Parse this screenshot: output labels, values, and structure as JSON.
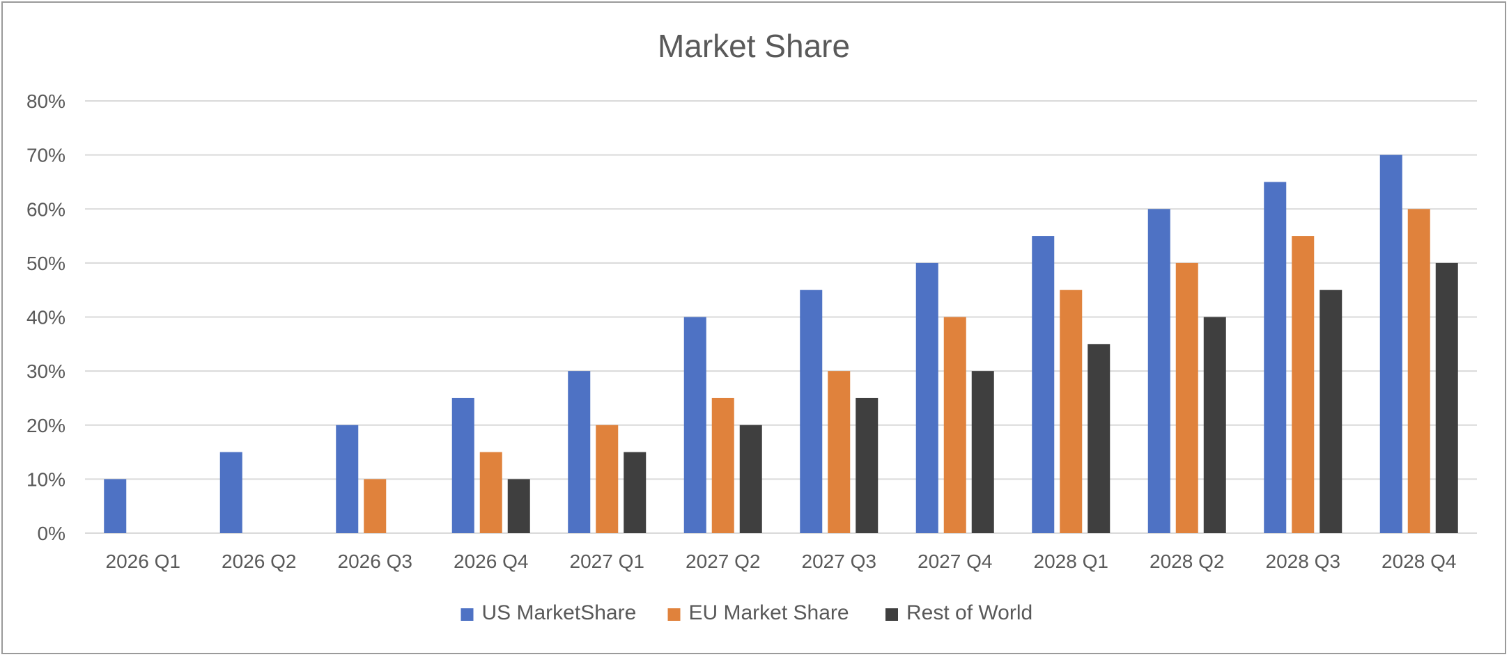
{
  "chart_data": {
    "type": "bar",
    "title": "Market Share",
    "xlabel": "",
    "ylabel": "",
    "ylim": [
      0,
      0.8
    ],
    "y_ticks": [
      "0%",
      "10%",
      "20%",
      "30%",
      "40%",
      "50%",
      "60%",
      "70%",
      "80%"
    ],
    "categories": [
      "2026 Q1",
      "2026 Q2",
      "2026 Q3",
      "2026 Q4",
      "2027 Q1",
      "2027 Q2",
      "2027 Q3",
      "2027 Q4",
      "2028 Q1",
      "2028 Q2",
      "2028 Q3",
      "2028 Q4"
    ],
    "series": [
      {
        "name": "US MarketShare",
        "color": "#4e72c4",
        "values": [
          0.1,
          0.15,
          0.2,
          0.25,
          0.3,
          0.4,
          0.45,
          0.5,
          0.55,
          0.6,
          0.65,
          0.7
        ]
      },
      {
        "name": "EU Market Share",
        "color": "#e0823c",
        "values": [
          0,
          0,
          0.1,
          0.15,
          0.2,
          0.25,
          0.3,
          0.4,
          0.45,
          0.5,
          0.55,
          0.6
        ]
      },
      {
        "name": "Rest of World",
        "color": "#3f3f3f",
        "values": [
          0,
          0,
          0,
          0.1,
          0.15,
          0.2,
          0.25,
          0.3,
          0.35,
          0.4,
          0.45,
          0.5
        ]
      }
    ],
    "grid": true,
    "legend": "bottom"
  }
}
